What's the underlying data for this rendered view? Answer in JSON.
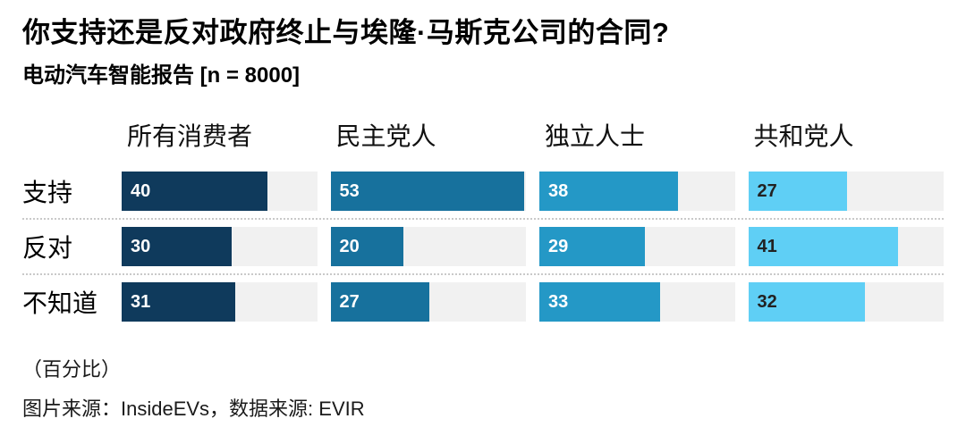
{
  "header": {
    "title": "你支持还是反对政府终止与埃隆·马斯克公司的合同?",
    "subtitle": "电动汽车智能报告 [n = 8000]"
  },
  "chart_data": {
    "type": "bar",
    "orientation": "horizontal",
    "value_unit": "percent",
    "categories": [
      "所有消费者",
      "民主党人",
      "独立人士",
      "共和党人"
    ],
    "series": [
      {
        "name": "支持",
        "values": [
          40,
          53,
          38,
          27
        ]
      },
      {
        "name": "反对",
        "values": [
          30,
          20,
          29,
          41
        ]
      },
      {
        "name": "不知道",
        "values": [
          31,
          27,
          33,
          32
        ]
      }
    ],
    "xlim": [
      0,
      53.5
    ],
    "grid": "off",
    "legend": "none",
    "bar_colors": [
      "#0f3a5c",
      "#17719d",
      "#2498c6",
      "#5fcff5"
    ],
    "value_label_colors": [
      "#ffffff",
      "#ffffff",
      "#ffffff",
      "#222222"
    ],
    "track_color": "#f1f1f1"
  },
  "footer": {
    "unit_note": "（百分比）",
    "source_note": "图片来源：InsideEVs，数据来源: EVIR"
  }
}
